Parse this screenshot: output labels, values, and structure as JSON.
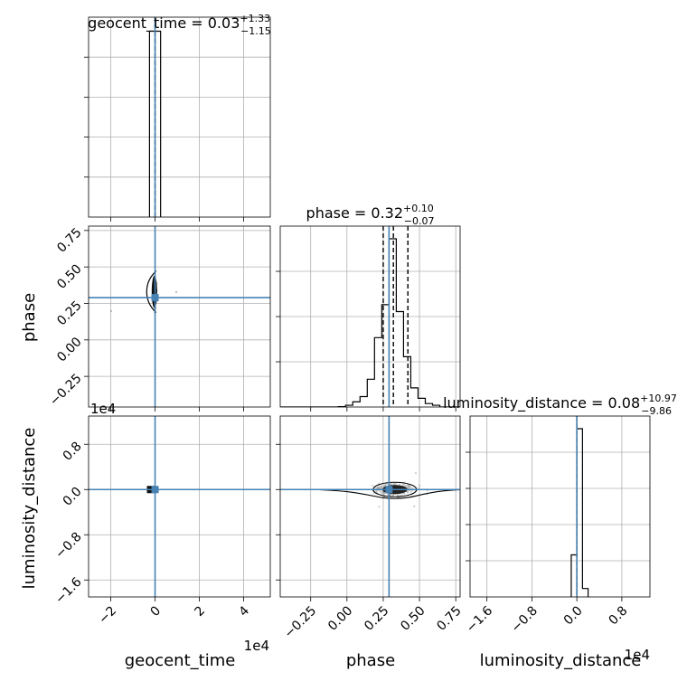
{
  "chart_data": {
    "type": "corner",
    "parameters": [
      {
        "name": "geocent_time",
        "axis_label": "geocent_time",
        "title_main": "geocent_time = 0.03",
        "title_sup": "+1.33",
        "title_sub": "−1.15",
        "median": 0.03,
        "quantile_lo": -1.12,
        "quantile_hi": 1.36,
        "truth": 0,
        "range": [
          -30000,
          52000
        ],
        "ticks": [
          -20000,
          0,
          20000,
          40000
        ],
        "tick_labels": [
          "−2",
          "0",
          "2",
          "4"
        ],
        "offset_text": "1e4"
      },
      {
        "name": "phase",
        "axis_label": "phase",
        "title_main": "phase = 0.32",
        "title_sup": "+0.10",
        "title_sub": "−0.07",
        "median": 0.32,
        "quantile_lo": 0.25,
        "quantile_hi": 0.42,
        "truth": 0.29,
        "range": [
          -0.46,
          0.78
        ],
        "ticks": [
          -0.25,
          0.0,
          0.25,
          0.5,
          0.75
        ],
        "tick_labels": [
          "−0.25",
          "0.00",
          "0.25",
          "0.50",
          "0.75"
        ],
        "offset_text": ""
      },
      {
        "name": "luminosity_distance",
        "axis_label": "luminosity_distance",
        "title_main": "luminosity_distance = 0.08",
        "title_sup": "+10.97",
        "title_sub": "−9.86",
        "median": 0.08,
        "quantile_lo": -9.78,
        "quantile_hi": 11.05,
        "truth": 0,
        "range": [
          -19000,
          13000
        ],
        "ticks": [
          -16000,
          -8000,
          0,
          8000
        ],
        "tick_labels": [
          "−1.6",
          "−0.8",
          "0.0",
          "0.8"
        ],
        "offset_text": "1e4"
      }
    ],
    "hist_1d": [
      {
        "edges": [
          -2500,
          0,
          2500
        ],
        "counts": [
          1,
          1
        ]
      },
      {
        "edges": [
          -0.46,
          -0.41,
          -0.36,
          -0.31,
          -0.26,
          -0.21,
          -0.16,
          -0.11,
          -0.06,
          -0.01,
          0.04,
          0.09,
          0.14,
          0.19,
          0.24,
          0.29,
          0.34,
          0.39,
          0.44,
          0.49,
          0.54,
          0.59,
          0.64,
          0.69,
          0.74,
          0.78
        ],
        "counts": [
          0,
          0,
          0,
          0,
          0,
          0,
          0,
          0,
          0.002,
          0.01,
          0.03,
          0.06,
          0.16,
          0.4,
          0.59,
          0.97,
          0.55,
          0.29,
          0.11,
          0.05,
          0.02,
          0.01,
          0,
          0,
          0
        ]
      },
      {
        "edges": [
          -1000,
          0,
          1000,
          2000
        ],
        "counts": [
          0.25,
          1.0,
          0.05
        ]
      }
    ],
    "series_colors": {
      "hist": "#000000",
      "truth": "#4682b4",
      "scatter": "#9a9a9a",
      "grid": "#b0b0b0"
    },
    "grid": true
  }
}
